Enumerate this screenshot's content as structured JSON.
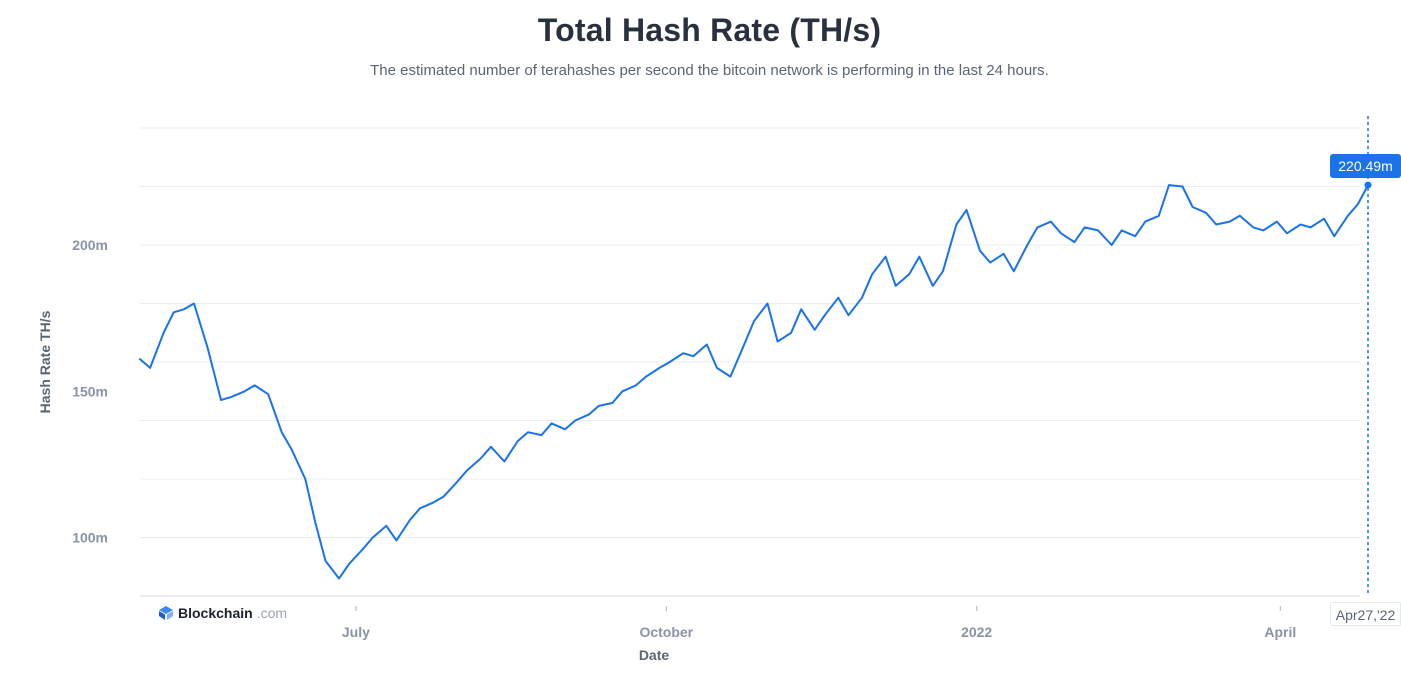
{
  "title": "Total Hash Rate (TH/s)",
  "subtitle": "The estimated number of terahashes per second the bitcoin network is performing in the last 24 hours.",
  "brand": {
    "name": "Blockchain",
    "suffix": ".com"
  },
  "tooltip": {
    "value_label": "220.49m",
    "date_label": "Apr27,'22"
  },
  "colors": {
    "line": "#1a73e8",
    "grid": "#e9ecf1",
    "text_muted": "#8a93a6",
    "accent": "#1a73e8"
  },
  "chart_data": {
    "type": "line",
    "title": "Total Hash Rate (TH/s)",
    "xlabel": "Date",
    "ylabel": "Hash Rate TH/s",
    "x_range": [
      "2021-04-28",
      "2022-04-27"
    ],
    "ylim": [
      80,
      240
    ],
    "y_ticks": [
      {
        "value": 100,
        "label": "100m"
      },
      {
        "value": 150,
        "label": "150m"
      },
      {
        "value": 200,
        "label": "200m"
      }
    ],
    "x_ticks": [
      {
        "date": "2021-07-01",
        "label": "July"
      },
      {
        "date": "2021-10-01",
        "label": "October"
      },
      {
        "date": "2022-01-01",
        "label": "2022"
      },
      {
        "date": "2022-04-01",
        "label": "April"
      }
    ],
    "grid": true,
    "legend": "none",
    "series": [
      {
        "x": [
          "2021-04-28",
          "2021-05-01",
          "2021-05-05",
          "2021-05-08",
          "2021-05-11",
          "2021-05-14",
          "2021-05-18",
          "2021-05-22",
          "2021-05-25",
          "2021-05-29",
          "2021-06-01",
          "2021-06-05",
          "2021-06-09",
          "2021-06-12",
          "2021-06-16",
          "2021-06-19",
          "2021-06-22",
          "2021-06-26",
          "2021-06-29",
          "2021-07-03",
          "2021-07-06",
          "2021-07-10",
          "2021-07-13",
          "2021-07-17",
          "2021-07-20",
          "2021-07-24",
          "2021-07-27",
          "2021-07-31",
          "2021-08-03",
          "2021-08-07",
          "2021-08-10",
          "2021-08-14",
          "2021-08-18",
          "2021-08-21",
          "2021-08-25",
          "2021-08-28",
          "2021-09-01",
          "2021-09-04",
          "2021-09-08",
          "2021-09-11",
          "2021-09-15",
          "2021-09-18",
          "2021-09-22",
          "2021-09-25",
          "2021-09-29",
          "2021-10-02",
          "2021-10-06",
          "2021-10-09",
          "2021-10-13",
          "2021-10-16",
          "2021-10-20",
          "2021-10-23",
          "2021-10-27",
          "2021-10-31",
          "2021-11-03",
          "2021-11-07",
          "2021-11-10",
          "2021-11-14",
          "2021-11-17",
          "2021-11-21",
          "2021-11-24",
          "2021-11-28",
          "2021-12-01",
          "2021-12-05",
          "2021-12-08",
          "2021-12-12",
          "2021-12-15",
          "2021-12-19",
          "2021-12-22",
          "2021-12-26",
          "2021-12-29",
          "2022-01-02",
          "2022-01-05",
          "2022-01-09",
          "2022-01-12",
          "2022-01-16",
          "2022-01-19",
          "2022-01-23",
          "2022-01-26",
          "2022-01-30",
          "2022-02-02",
          "2022-02-06",
          "2022-02-10",
          "2022-02-13",
          "2022-02-17",
          "2022-02-20",
          "2022-02-24",
          "2022-02-27",
          "2022-03-03",
          "2022-03-06",
          "2022-03-10",
          "2022-03-13",
          "2022-03-17",
          "2022-03-20",
          "2022-03-24",
          "2022-03-27",
          "2022-03-31",
          "2022-04-03",
          "2022-04-07",
          "2022-04-10",
          "2022-04-14",
          "2022-04-17",
          "2022-04-21",
          "2022-04-24",
          "2022-04-27"
        ],
        "values": [
          161,
          158,
          170,
          177,
          178,
          180,
          165,
          147,
          148,
          150,
          152,
          149,
          136,
          130,
          120,
          105,
          92,
          86,
          91,
          96,
          100,
          104,
          99,
          106,
          110,
          112,
          114,
          119,
          123,
          127,
          131,
          126,
          133,
          136,
          135,
          139,
          137,
          140,
          142,
          145,
          146,
          150,
          152,
          155,
          158,
          160,
          163,
          162,
          166,
          158,
          155,
          163,
          174,
          180,
          167,
          170,
          178,
          171,
          176,
          182,
          176,
          182,
          190,
          196,
          186,
          190,
          196,
          186,
          191,
          207,
          212,
          198,
          194,
          197,
          191,
          200,
          206,
          208,
          204,
          201,
          206,
          205,
          200,
          205,
          203,
          208,
          210,
          220.49,
          220,
          213,
          211,
          207,
          208,
          210,
          206,
          205,
          208,
          204,
          207,
          206,
          209,
          203,
          210,
          214,
          220.49
        ]
      }
    ]
  }
}
